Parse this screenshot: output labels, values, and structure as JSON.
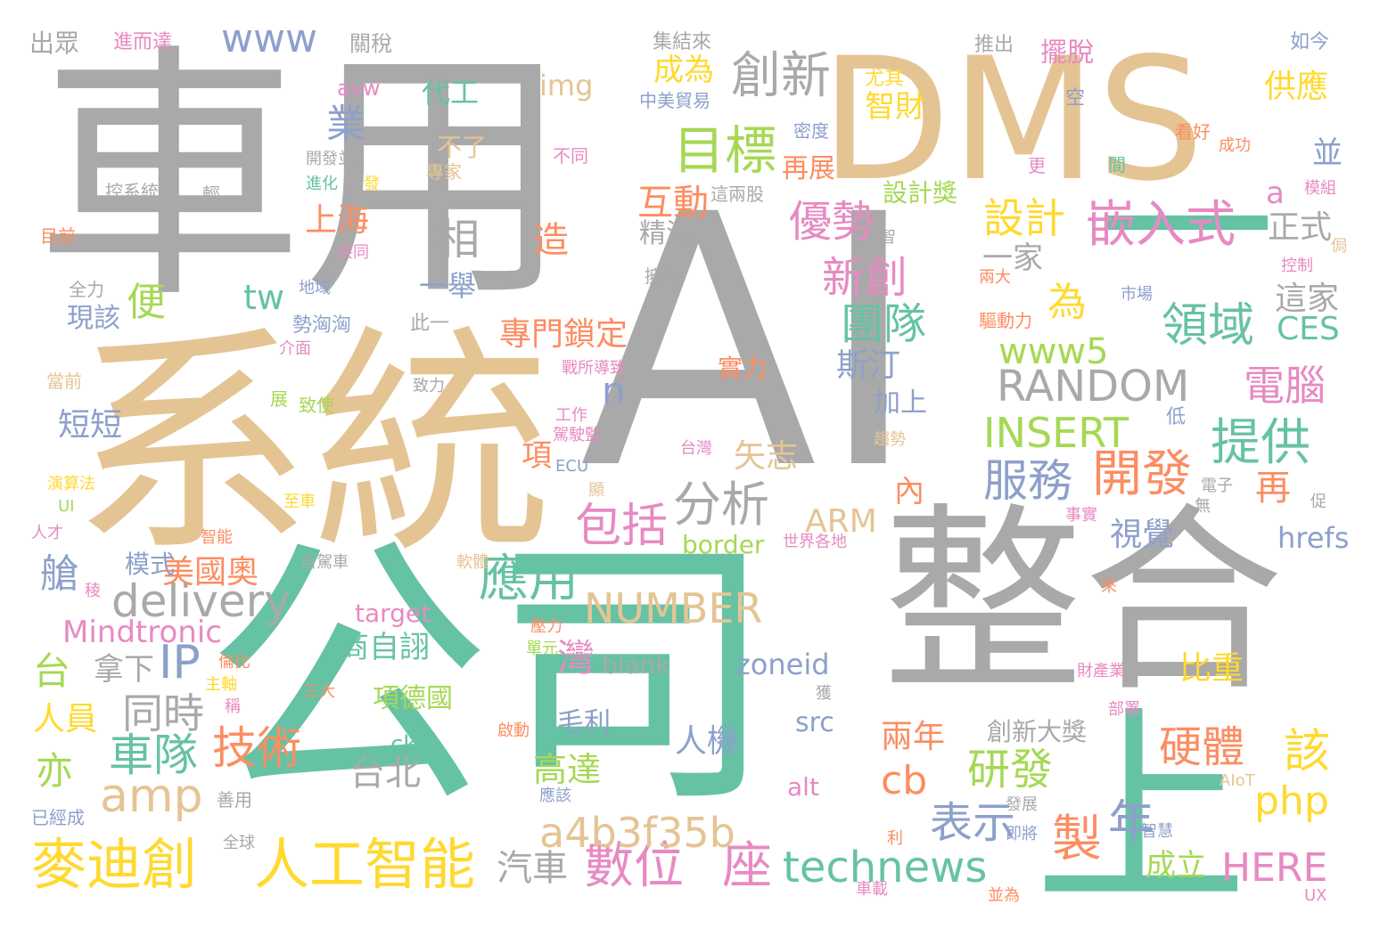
{
  "palette": {
    "gray": "#a9a9a9",
    "tan": "#e5c494",
    "teal": "#66c2a5",
    "orange": "#fc8d62",
    "blue": "#8da0cb",
    "pink": "#e78ac3",
    "green": "#a6d854",
    "yellow": "#ffd92f"
  },
  "words": [
    {
      "text": "車用",
      "color": "#a9a9a9"
    },
    {
      "text": "系統",
      "color": "#e5c494"
    },
    {
      "text": "公司",
      "color": "#66c2a5"
    },
    {
      "text": "AI",
      "color": "#a9a9a9"
    },
    {
      "text": "DMS",
      "color": "#e5c494"
    },
    {
      "text": "整合",
      "color": "#a9a9a9"
    },
    {
      "text": "上",
      "color": "#66c2a5"
    },
    {
      "text": "一",
      "color": "#66c2a5"
    },
    {
      "text": "目標",
      "color": "#a6d854"
    },
    {
      "text": "創新",
      "color": "#a9a9a9"
    },
    {
      "text": "嵌入式",
      "color": "#e78ac3"
    },
    {
      "text": "www",
      "color": "#8da0cb"
    },
    {
      "text": "業",
      "color": "#8da0cb"
    },
    {
      "text": "相",
      "color": "#a9a9a9"
    },
    {
      "text": "麥迪創",
      "color": "#ffd92f"
    },
    {
      "text": "人工智能",
      "color": "#ffd92f"
    },
    {
      "text": "數位",
      "color": "#e78ac3"
    },
    {
      "text": "座",
      "color": "#e78ac3"
    },
    {
      "text": "technews",
      "color": "#66c2a5"
    },
    {
      "text": "HERE",
      "color": "#e78ac3"
    },
    {
      "text": "a4b3f35b",
      "color": "#e5c494"
    },
    {
      "text": "amp",
      "color": "#e5c494"
    },
    {
      "text": "delivery",
      "color": "#a9a9a9"
    },
    {
      "text": "RANDOM",
      "color": "#a9a9a9"
    },
    {
      "text": "INSERT",
      "color": "#a6d854"
    },
    {
      "text": "NUMBER",
      "color": "#e5c494"
    },
    {
      "text": "www5",
      "color": "#a6d854"
    },
    {
      "text": "Mindtronic",
      "color": "#e78ac3"
    },
    {
      "text": "分析",
      "color": "#a9a9a9"
    },
    {
      "text": "應用",
      "color": "#66c2a5"
    },
    {
      "text": "包括",
      "color": "#e78ac3"
    },
    {
      "text": "開發",
      "color": "#fc8d62"
    },
    {
      "text": "提供",
      "color": "#66c2a5"
    },
    {
      "text": "服務",
      "color": "#8da0cb"
    },
    {
      "text": "領域",
      "color": "#66c2a5"
    },
    {
      "text": "電腦",
      "color": "#e78ac3"
    },
    {
      "text": "設計",
      "color": "#ffd92f"
    },
    {
      "text": "優勢",
      "color": "#e78ac3"
    },
    {
      "text": "新創",
      "color": "#e78ac3"
    },
    {
      "text": "團隊",
      "color": "#66c2a5"
    },
    {
      "text": "斯汀",
      "color": "#8da0cb"
    },
    {
      "text": "互動",
      "color": "#fc8d62"
    },
    {
      "text": "精湛",
      "color": "#a9a9a9"
    },
    {
      "text": "成為",
      "color": "#ffd92f"
    },
    {
      "text": "智財",
      "color": "#ffd92f"
    },
    {
      "text": "代工",
      "color": "#66c2a5"
    },
    {
      "text": "img",
      "color": "#e5c494"
    },
    {
      "text": "上海",
      "color": "#fc8d62"
    },
    {
      "text": "造",
      "color": "#fc8d62"
    },
    {
      "text": "一舉",
      "color": "#8da0cb"
    },
    {
      "text": "專門鎖定",
      "color": "#fc8d62"
    },
    {
      "text": "車隊",
      "color": "#66c2a5"
    },
    {
      "text": "技術",
      "color": "#fc8d62"
    },
    {
      "text": "同時",
      "color": "#a9a9a9"
    },
    {
      "text": "台",
      "color": "#a6d854"
    },
    {
      "text": "拿下",
      "color": "#a9a9a9"
    },
    {
      "text": "IP",
      "color": "#8da0cb"
    },
    {
      "text": "美國奧",
      "color": "#fc8d62"
    },
    {
      "text": "人員",
      "color": "#ffd92f"
    },
    {
      "text": "亦",
      "color": "#a6d854"
    },
    {
      "text": "灣",
      "color": "#e78ac3"
    },
    {
      "text": "商自詡",
      "color": "#66c2a5"
    },
    {
      "text": "項德國",
      "color": "#a6d854"
    },
    {
      "text": "台北",
      "color": "#a9a9a9"
    },
    {
      "text": "高達",
      "color": "#a6d854"
    },
    {
      "text": "人機",
      "color": "#8da0cb"
    },
    {
      "text": "毛利",
      "color": "#8da0cb"
    },
    {
      "text": "zoneid",
      "color": "#8da0cb"
    },
    {
      "text": "src",
      "color": "#8da0cb"
    },
    {
      "text": "alt",
      "color": "#e78ac3"
    },
    {
      "text": "cb",
      "color": "#fc8d62"
    },
    {
      "text": "表示",
      "color": "#8da0cb"
    },
    {
      "text": "研發",
      "color": "#a6d854"
    },
    {
      "text": "製",
      "color": "#fc8d62"
    },
    {
      "text": "年",
      "color": "#8da0cb"
    },
    {
      "text": "該",
      "color": "#ffd92f"
    },
    {
      "text": "php",
      "color": "#ffd92f"
    },
    {
      "text": "硬體",
      "color": "#fc8d62"
    },
    {
      "text": "成立",
      "color": "#a6d854"
    },
    {
      "text": "兩年",
      "color": "#fc8d62"
    },
    {
      "text": "創新大獎",
      "color": "#a9a9a9"
    },
    {
      "text": "比重",
      "color": "#ffd92f"
    },
    {
      "text": "汽車",
      "color": "#a9a9a9"
    },
    {
      "text": "視覺",
      "color": "#8da0cb"
    },
    {
      "text": "再",
      "color": "#fc8d62"
    },
    {
      "text": "hrefs",
      "color": "#8da0cb"
    },
    {
      "text": "CES",
      "color": "#66c2a5"
    },
    {
      "text": "這家",
      "color": "#a9a9a9"
    },
    {
      "text": "正式",
      "color": "#a9a9a9"
    },
    {
      "text": "供應",
      "color": "#ffd92f"
    },
    {
      "text": "a",
      "color": "#e78ac3"
    },
    {
      "text": "並",
      "color": "#8da0cb"
    },
    {
      "text": "一家",
      "color": "#a9a9a9"
    },
    {
      "text": "為",
      "color": "#ffd92f"
    },
    {
      "text": "tw",
      "color": "#66c2a5"
    },
    {
      "text": "便",
      "color": "#a6d854"
    },
    {
      "text": "短短",
      "color": "#8da0cb"
    },
    {
      "text": "現該",
      "color": "#8da0cb"
    },
    {
      "text": "n",
      "color": "#8da0cb"
    },
    {
      "text": "矢志",
      "color": "#e5c494"
    },
    {
      "text": "ARM",
      "color": "#e5c494"
    },
    {
      "text": "border",
      "color": "#a6d854"
    },
    {
      "text": "target",
      "color": "#e78ac3"
    },
    {
      "text": "blank",
      "color": "#a9a9a9"
    },
    {
      "text": "艙",
      "color": "#8da0cb"
    },
    {
      "text": "模式",
      "color": "#8da0cb"
    },
    {
      "text": "設計獎",
      "color": "#a6d854"
    },
    {
      "text": "再展",
      "color": "#fc8d62"
    },
    {
      "text": "加上",
      "color": "#8da0cb"
    },
    {
      "text": "實力",
      "color": "#fc8d62"
    },
    {
      "text": "內",
      "color": "#fc8d62"
    },
    {
      "text": "項",
      "color": "#fc8d62"
    },
    {
      "text": "ck",
      "color": "#66c2a5"
    },
    {
      "text": "出眾",
      "color": "#a9a9a9"
    },
    {
      "text": "進而達",
      "color": "#e78ac3"
    },
    {
      "text": "關稅",
      "color": "#a9a9a9"
    },
    {
      "text": "集結來",
      "color": "#a9a9a9"
    },
    {
      "text": "推出",
      "color": "#a9a9a9"
    },
    {
      "text": "擺脫",
      "color": "#e78ac3"
    },
    {
      "text": "如今",
      "color": "#8da0cb"
    },
    {
      "text": "avw",
      "color": "#e78ac3"
    },
    {
      "text": "尤其",
      "color": "#ffd92f"
    },
    {
      "text": "中美貿易",
      "color": "#8da0cb"
    },
    {
      "text": "空",
      "color": "#8da0cb"
    },
    {
      "text": "看好",
      "color": "#fc8d62"
    },
    {
      "text": "成功",
      "color": "#fc8d62"
    },
    {
      "text": "密度",
      "color": "#8da0cb"
    },
    {
      "text": "不了",
      "color": "#e5c494"
    },
    {
      "text": "不同",
      "color": "#e78ac3"
    },
    {
      "text": "開發並",
      "color": "#a9a9a9"
    },
    {
      "text": "專家",
      "color": "#e5c494"
    },
    {
      "text": "更",
      "color": "#e78ac3"
    },
    {
      "text": "間",
      "color": "#66c2a5"
    },
    {
      "text": "模組",
      "color": "#e78ac3"
    },
    {
      "text": "控系統",
      "color": "#a9a9a9"
    },
    {
      "text": "輕",
      "color": "#a9a9a9"
    },
    {
      "text": "進化",
      "color": "#66c2a5"
    },
    {
      "text": "發",
      "color": "#ffd92f"
    },
    {
      "text": "這兩股",
      "color": "#a9a9a9"
    },
    {
      "text": "目前",
      "color": "#fc8d62"
    },
    {
      "text": "共同",
      "color": "#e78ac3"
    },
    {
      "text": "智",
      "color": "#a9a9a9"
    },
    {
      "text": "侷",
      "color": "#e5c494"
    },
    {
      "text": "控制",
      "color": "#e78ac3"
    },
    {
      "text": "全力",
      "color": "#a9a9a9"
    },
    {
      "text": "地域",
      "color": "#8da0cb"
    },
    {
      "text": "擁有",
      "color": "#a9a9a9"
    },
    {
      "text": "兩大",
      "color": "#fc8d62"
    },
    {
      "text": "市場",
      "color": "#8da0cb"
    },
    {
      "text": "勢洶洶",
      "color": "#8da0cb"
    },
    {
      "text": "此一",
      "color": "#a9a9a9"
    },
    {
      "text": "驅動力",
      "color": "#fc8d62"
    },
    {
      "text": "介面",
      "color": "#e78ac3"
    },
    {
      "text": "當前",
      "color": "#e5c494"
    },
    {
      "text": "戰所導致",
      "color": "#e78ac3"
    },
    {
      "text": "致力",
      "color": "#a9a9a9"
    },
    {
      "text": "展",
      "color": "#a6d854"
    },
    {
      "text": "致使",
      "color": "#a6d854"
    },
    {
      "text": "工作",
      "color": "#e78ac3"
    },
    {
      "text": "駕駛監",
      "color": "#e78ac3"
    },
    {
      "text": "趨勢",
      "color": "#e5c494"
    },
    {
      "text": "低",
      "color": "#8da0cb"
    },
    {
      "text": "台灣",
      "color": "#e78ac3"
    },
    {
      "text": "ECU",
      "color": "#8da0cb"
    },
    {
      "text": "演算法",
      "color": "#ffd92f"
    },
    {
      "text": "UI",
      "color": "#a6d854"
    },
    {
      "text": "至車",
      "color": "#ffd92f"
    },
    {
      "text": "顯",
      "color": "#e5c494"
    },
    {
      "text": "電子",
      "color": "#a9a9a9"
    },
    {
      "text": "無",
      "color": "#a9a9a9"
    },
    {
      "text": "事實",
      "color": "#e78ac3"
    },
    {
      "text": "促",
      "color": "#a9a9a9"
    },
    {
      "text": "人才",
      "color": "#e78ac3"
    },
    {
      "text": "智能",
      "color": "#fc8d62"
    },
    {
      "text": "自駕車",
      "color": "#a9a9a9"
    },
    {
      "text": "軟體",
      "color": "#e5c494"
    },
    {
      "text": "世界各地",
      "color": "#e78ac3"
    },
    {
      "text": "稜",
      "color": "#e78ac3"
    },
    {
      "text": "壓力",
      "color": "#fc8d62"
    },
    {
      "text": "單元",
      "color": "#a6d854"
    },
    {
      "text": "倫比",
      "color": "#fc8d62"
    },
    {
      "text": "主軸",
      "color": "#ffd92f"
    },
    {
      "text": "稱",
      "color": "#e78ac3"
    },
    {
      "text": "三大",
      "color": "#fc8d62"
    },
    {
      "text": "獲",
      "color": "#a9a9a9"
    },
    {
      "text": "來",
      "color": "#fc8d62"
    },
    {
      "text": "財產業",
      "color": "#e78ac3"
    },
    {
      "text": "部署",
      "color": "#e78ac3"
    },
    {
      "text": "啟動",
      "color": "#fc8d62"
    },
    {
      "text": "應該",
      "color": "#8da0cb"
    },
    {
      "text": "善用",
      "color": "#a9a9a9"
    },
    {
      "text": "已經成",
      "color": "#8da0cb"
    },
    {
      "text": "全球",
      "color": "#a9a9a9"
    },
    {
      "text": "利",
      "color": "#fc8d62"
    },
    {
      "text": "即將",
      "color": "#8da0cb"
    },
    {
      "text": "發展",
      "color": "#a9a9a9"
    },
    {
      "text": "智慧",
      "color": "#8da0cb"
    },
    {
      "text": "AIoT",
      "color": "#e5c494"
    },
    {
      "text": "車載",
      "color": "#e78ac3"
    },
    {
      "text": "並為",
      "color": "#fc8d62"
    },
    {
      "text": "UX",
      "color": "#e78ac3"
    }
  ]
}
